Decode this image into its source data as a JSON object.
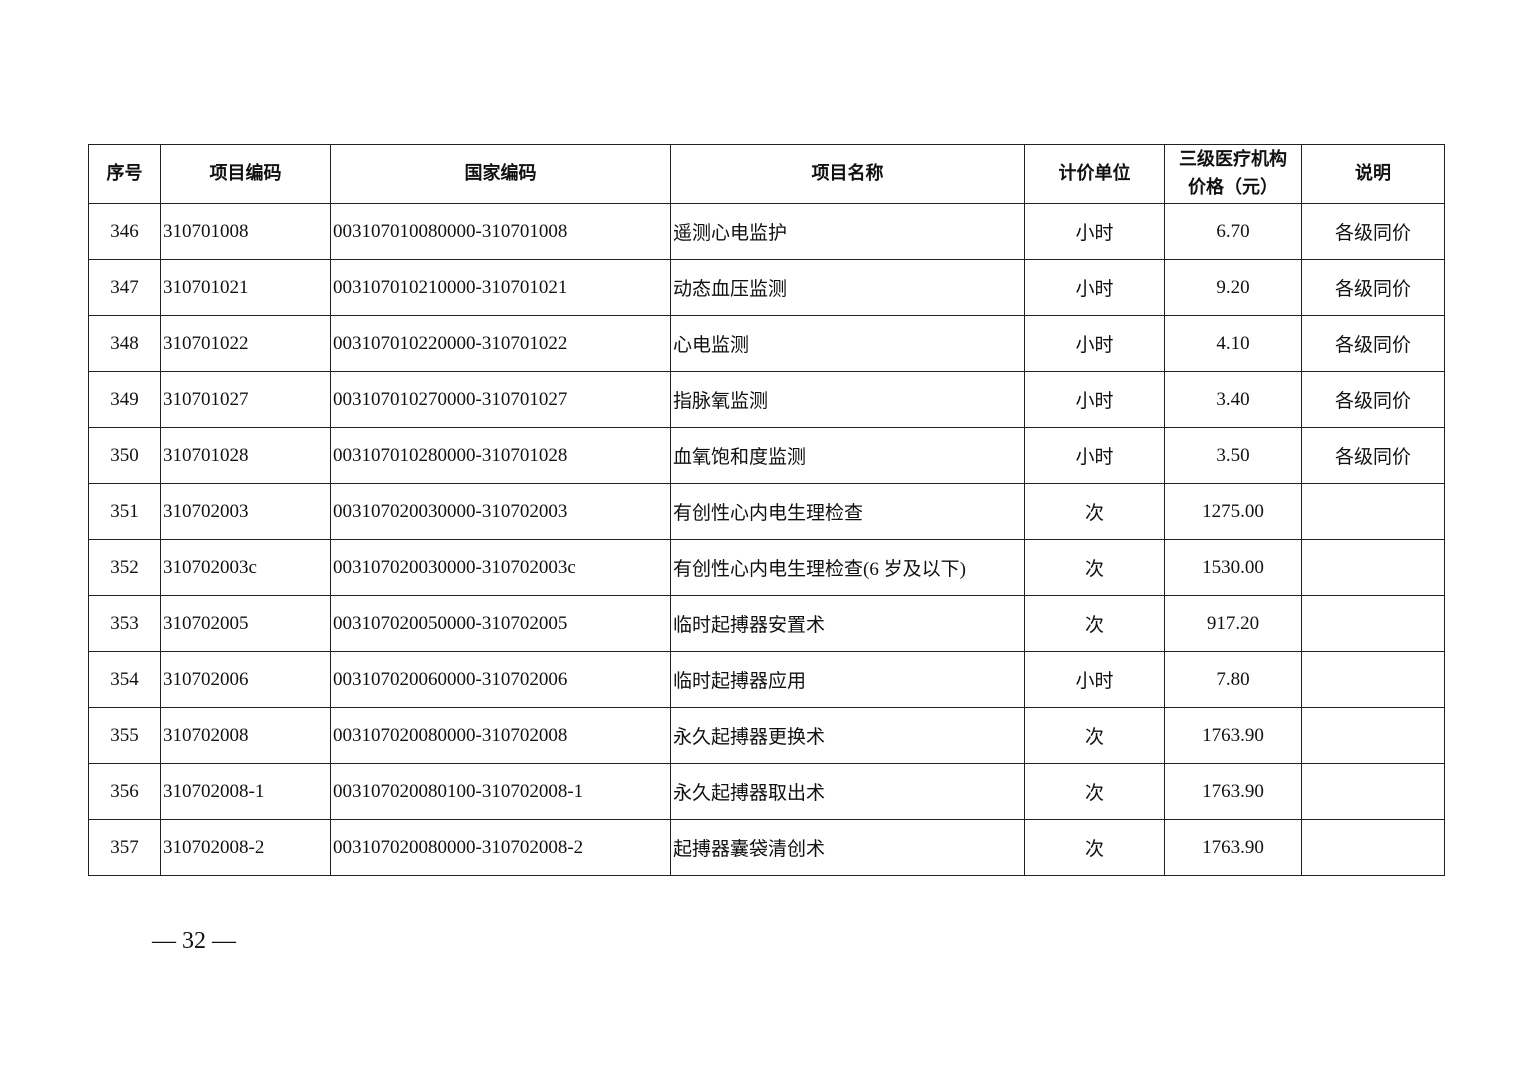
{
  "table": {
    "headers": [
      "序号",
      "项目编码",
      "国家编码",
      "项目名称",
      "计价单位",
      "三级医疗机构价格（元）",
      "说明"
    ],
    "header_price_line1": "三级医疗机构",
    "header_price_line2": "价格（元）",
    "rows": [
      {
        "no": "346",
        "code": "310701008",
        "national_code": "003107010080000-310701008",
        "name": "遥测心电监护",
        "unit": "小时",
        "price": "6.70",
        "note": "各级同价"
      },
      {
        "no": "347",
        "code": "310701021",
        "national_code": "003107010210000-310701021",
        "name": "动态血压监测",
        "unit": "小时",
        "price": "9.20",
        "note": "各级同价"
      },
      {
        "no": "348",
        "code": "310701022",
        "national_code": "003107010220000-310701022",
        "name": "心电监测",
        "unit": "小时",
        "price": "4.10",
        "note": "各级同价"
      },
      {
        "no": "349",
        "code": "310701027",
        "national_code": "003107010270000-310701027",
        "name": "指脉氧监测",
        "unit": "小时",
        "price": "3.40",
        "note": "各级同价"
      },
      {
        "no": "350",
        "code": "310701028",
        "national_code": "003107010280000-310701028",
        "name": "血氧饱和度监测",
        "unit": "小时",
        "price": "3.50",
        "note": "各级同价"
      },
      {
        "no": "351",
        "code": "310702003",
        "national_code": "003107020030000-310702003",
        "name": "有创性心内电生理检查",
        "unit": "次",
        "price": "1275.00",
        "note": ""
      },
      {
        "no": "352",
        "code": "310702003c",
        "national_code": "003107020030000-310702003c",
        "name": "有创性心内电生理检查(6 岁及以下)",
        "unit": "次",
        "price": "1530.00",
        "note": ""
      },
      {
        "no": "353",
        "code": "310702005",
        "national_code": "003107020050000-310702005",
        "name": "临时起搏器安置术",
        "unit": "次",
        "price": "917.20",
        "note": ""
      },
      {
        "no": "354",
        "code": "310702006",
        "national_code": "003107020060000-310702006",
        "name": "临时起搏器应用",
        "unit": "小时",
        "price": "7.80",
        "note": ""
      },
      {
        "no": "355",
        "code": "310702008",
        "national_code": "003107020080000-310702008",
        "name": "永久起搏器更换术",
        "unit": "次",
        "price": "1763.90",
        "note": ""
      },
      {
        "no": "356",
        "code": "310702008-1",
        "national_code": "003107020080100-310702008-1",
        "name": "永久起搏器取出术",
        "unit": "次",
        "price": "1763.90",
        "note": ""
      },
      {
        "no": "357",
        "code": "310702008-2",
        "national_code": "003107020080000-310702008-2",
        "name": "起搏器囊袋清创术",
        "unit": "次",
        "price": "1763.90",
        "note": ""
      }
    ]
  },
  "footer": {
    "page_number": "— 32 —"
  }
}
